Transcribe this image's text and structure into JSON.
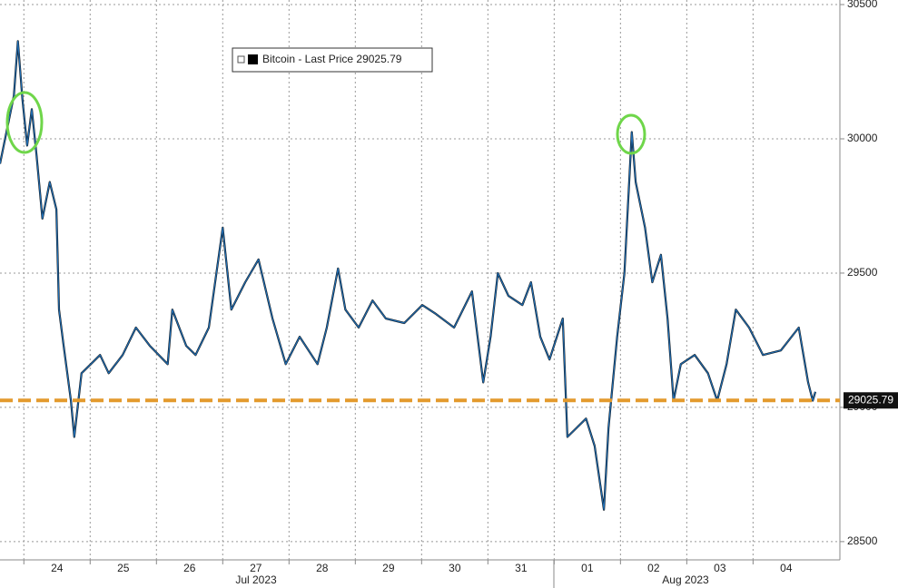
{
  "chart_data": {
    "type": "line",
    "x": [
      23.64,
      23.85,
      23.91,
      23.98,
      24.05,
      24.12,
      24.19,
      24.28,
      24.39,
      24.49,
      24.53,
      24.6,
      24.71,
      24.76,
      24.87,
      25.01,
      25.15,
      25.28,
      25.49,
      25.69,
      25.9,
      26.17,
      26.24,
      26.45,
      26.59,
      26.79,
      27.0,
      27.13,
      27.34,
      27.54,
      27.75,
      27.95,
      28.16,
      28.43,
      28.57,
      28.74,
      28.85,
      29.05,
      29.26,
      29.46,
      29.74,
      30.01,
      30.22,
      30.49,
      30.76,
      30.93,
      31.04,
      31.15,
      31.31,
      31.52,
      31.65,
      31.79,
      31.93,
      32.13,
      32.2,
      32.34,
      32.48,
      32.61,
      32.75,
      32.82,
      32.95,
      33.06,
      33.17,
      33.23,
      33.37,
      33.48,
      33.61,
      33.71,
      33.8,
      33.91,
      34.12,
      34.32,
      34.46,
      34.6,
      34.74,
      34.94,
      35.15,
      35.42,
      35.69,
      35.83,
      35.9,
      35.94
    ],
    "series": [
      {
        "name": "Bitcoin - Last Price",
        "color": "#1f6db3",
        "values": [
          29907,
          30161,
          30364,
          30144,
          29975,
          30110,
          29941,
          29703,
          29839,
          29737,
          29364,
          29229,
          29025,
          28890,
          29127,
          29161,
          29195,
          29127,
          29195,
          29297,
          29229,
          29161,
          29364,
          29229,
          29195,
          29297,
          29669,
          29364,
          29466,
          29551,
          29331,
          29161,
          29263,
          29161,
          29297,
          29517,
          29364,
          29297,
          29398,
          29331,
          29314,
          29381,
          29347,
          29297,
          29432,
          29093,
          29263,
          29500,
          29415,
          29381,
          29466,
          29263,
          29178,
          29331,
          28890,
          28924,
          28958,
          28856,
          28619,
          28924,
          29263,
          29500,
          30025,
          29839,
          29669,
          29466,
          29568,
          29331,
          29025,
          29161,
          29195,
          29127,
          29025,
          29161,
          29364,
          29297,
          29195,
          29212,
          29297,
          29093,
          29025,
          29058
        ]
      }
    ],
    "last_price": 29025.79,
    "reference_line": 29025.79,
    "xlim": [
      23.64,
      36.31
    ],
    "xticks": [
      24,
      25,
      26,
      27,
      28,
      29,
      30,
      31,
      {
        "value": 32,
        "label": "01"
      },
      {
        "value": 33,
        "label": "02"
      },
      {
        "value": 34,
        "label": "03"
      },
      {
        "value": 35,
        "label": "04"
      }
    ],
    "month_labels": [
      "Jul 2023",
      "Aug 2023"
    ],
    "ylim": [
      28432,
      30517
    ],
    "yticks": [
      28500,
      29000,
      29500,
      30000,
      30500
    ],
    "grid": true
  }
}
